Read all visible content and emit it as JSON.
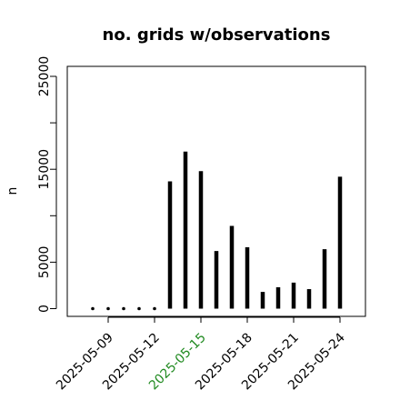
{
  "chart_data": {
    "type": "bar",
    "title": "no. grids w/observations",
    "xlabel": "",
    "ylabel": "n",
    "ylim": [
      0,
      26000
    ],
    "y_ticks": [
      0,
      5000,
      15000,
      25000
    ],
    "x": [
      "2025-05-08",
      "2025-05-09",
      "2025-05-10",
      "2025-05-11",
      "2025-05-12",
      "2025-05-13",
      "2025-05-14",
      "2025-05-15",
      "2025-05-16",
      "2025-05-17",
      "2025-05-18",
      "2025-05-19",
      "2025-05-20",
      "2025-05-21",
      "2025-05-22",
      "2025-05-23",
      "2025-05-24"
    ],
    "values": [
      0,
      0,
      0,
      0,
      0,
      13700,
      16900,
      14800,
      6200,
      8900,
      6600,
      1800,
      2300,
      2800,
      2100,
      6400,
      14200
    ],
    "x_tick_labels": [
      "2025-05-09",
      "2025-05-12",
      "2025-05-15",
      "2025-05-18",
      "2025-05-21",
      "2025-05-24"
    ],
    "highlight_tick": "2025-05-15",
    "colors": {
      "bars": "#000000",
      "highlight_tick": "#228B22",
      "text": "#000000"
    },
    "grid": false,
    "legend": "none"
  }
}
